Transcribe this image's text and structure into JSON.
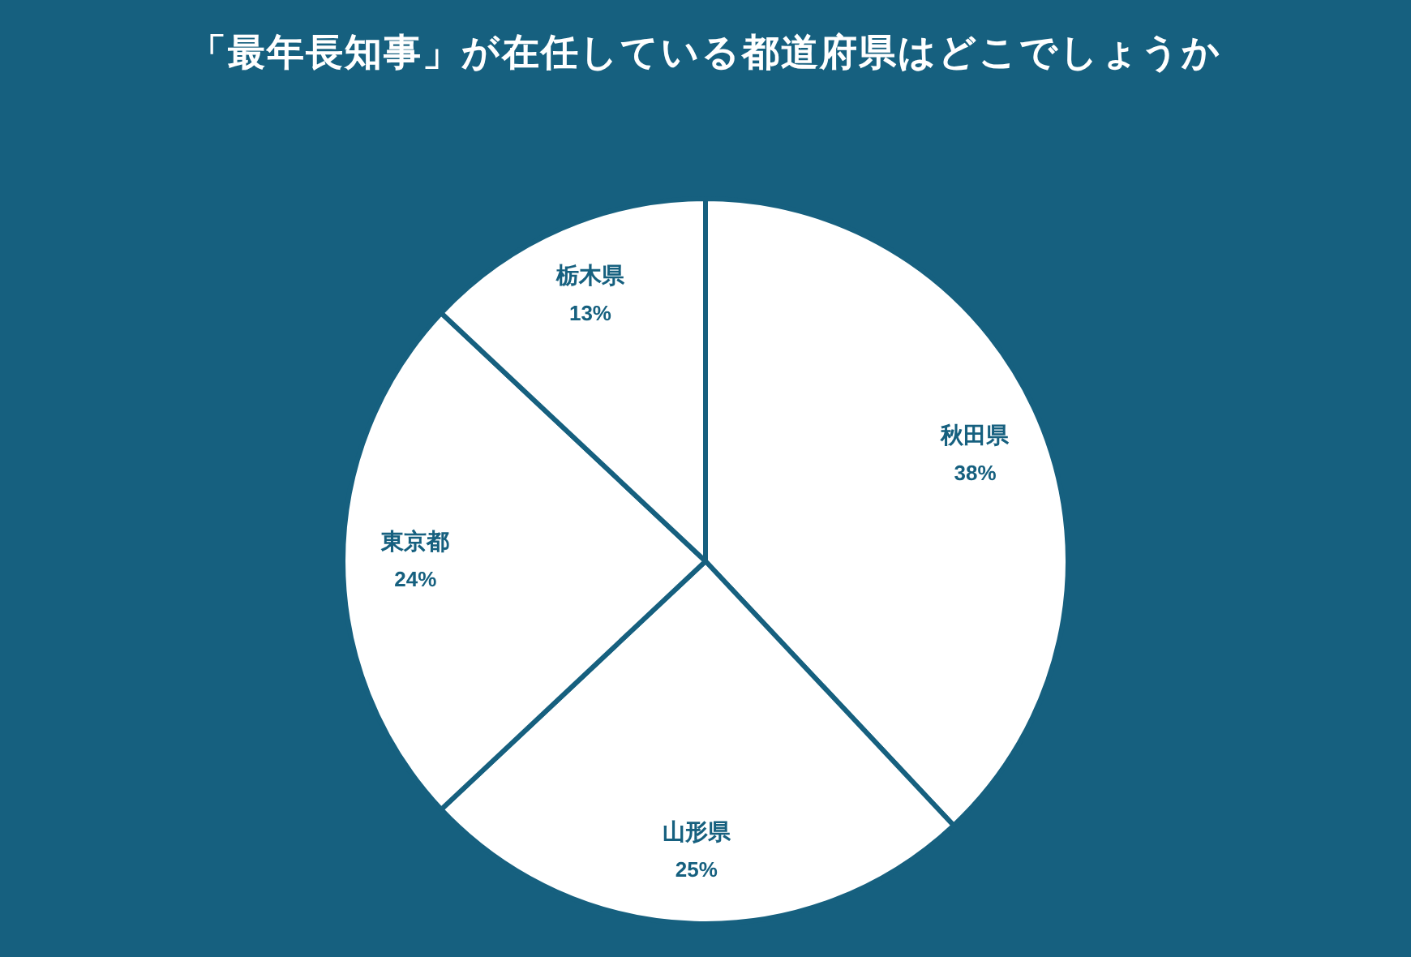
{
  "chart_data": {
    "type": "pie",
    "title": "「最年長知事」が在任している都道府県はどこでしょうか",
    "categories": [
      "秋田県",
      "山形県",
      "東京都",
      "栃木県"
    ],
    "values": [
      38,
      25,
      24,
      13
    ],
    "value_labels": [
      "38%",
      "25%",
      "24%",
      "13%"
    ],
    "colors": [
      "#ffffff",
      "#ffffff",
      "#ffffff",
      "#ffffff"
    ]
  }
}
